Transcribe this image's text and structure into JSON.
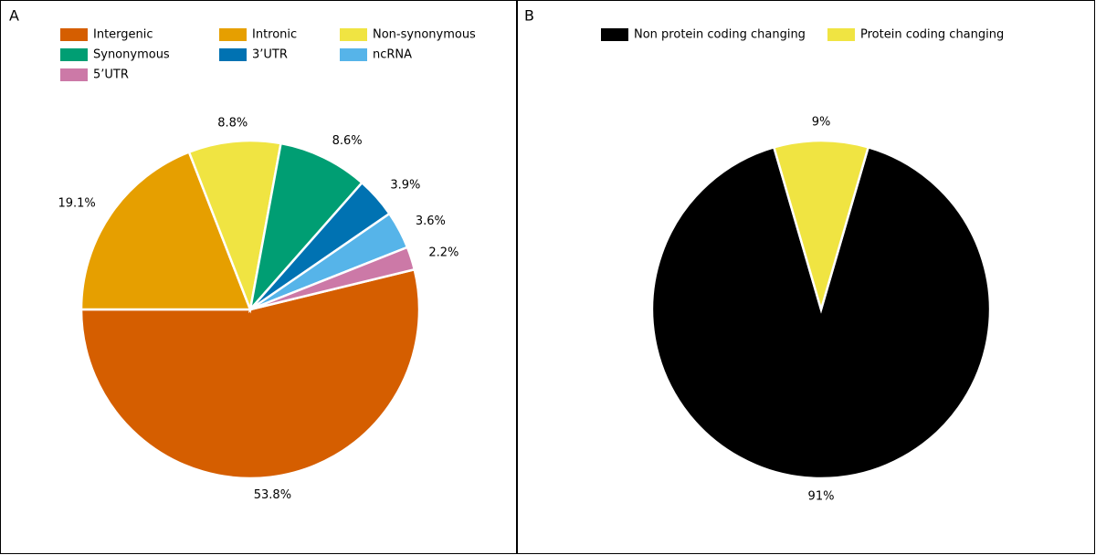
{
  "chart_data": [
    {
      "type": "pie",
      "panel_label": "A",
      "categories": [
        "Intergenic",
        "Intronic",
        "Non-synonymous",
        "Synonymous",
        "3’UTR",
        "ncRNA",
        "5’UTR"
      ],
      "values": [
        53.8,
        19.1,
        8.8,
        8.6,
        3.9,
        3.6,
        2.2
      ],
      "value_labels": [
        "53.8%",
        "19.1%",
        "8.8%",
        "8.6%",
        "3.9%",
        "3.6%",
        "2.2%"
      ],
      "colors": [
        "#d55e00",
        "#e69f00",
        "#f0e442",
        "#009e73",
        "#0072b2",
        "#56b4e9",
        "#cc79a7"
      ]
    },
    {
      "type": "pie",
      "panel_label": "B",
      "categories": [
        "Non protein coding changing",
        "Protein coding changing"
      ],
      "values": [
        91,
        9
      ],
      "value_labels": [
        "91%",
        "9%"
      ],
      "colors": [
        "#000000",
        "#f0e442"
      ]
    }
  ]
}
